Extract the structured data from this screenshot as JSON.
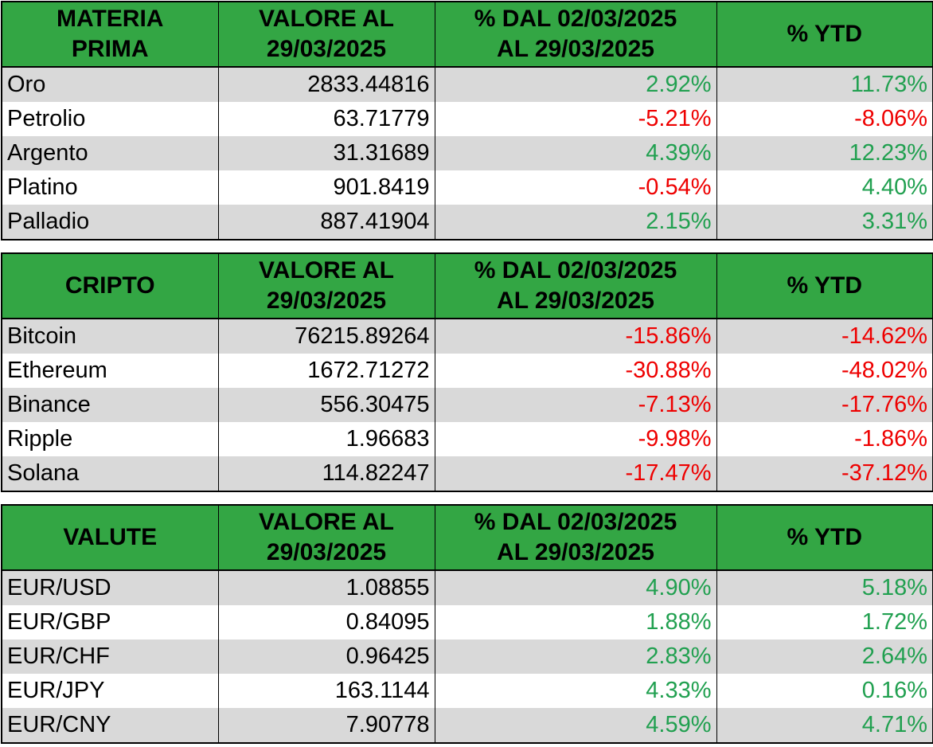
{
  "tables": [
    {
      "headers": [
        "MATERIA PRIMA",
        "VALORE AL 29/03/2025",
        "% DAL 02/03/2025 AL 29/03/2025",
        "% YTD"
      ],
      "header_lines": [
        [
          "MATERIA",
          "PRIMA"
        ],
        [
          "VALORE AL",
          "29/03/2025"
        ],
        [
          "% DAL 02/03/2025",
          "AL 29/03/2025"
        ],
        [
          "% YTD"
        ]
      ],
      "rows": [
        {
          "name": "Oro",
          "value": "2833.44816",
          "change": "2.92%",
          "ytd": "11.73%"
        },
        {
          "name": "Petrolio",
          "value": "63.71779",
          "change": "-5.21%",
          "ytd": "-8.06%"
        },
        {
          "name": "Argento",
          "value": "31.31689",
          "change": "4.39%",
          "ytd": "12.23%"
        },
        {
          "name": "Platino",
          "value": "901.8419",
          "change": "-0.54%",
          "ytd": "4.40%"
        },
        {
          "name": "Palladio",
          "value": "887.41904",
          "change": "2.15%",
          "ytd": "3.31%"
        }
      ]
    },
    {
      "headers": [
        "CRIPTO",
        "VALORE AL 29/03/2025",
        "% DAL 02/03/2025 AL 29/03/2025",
        "% YTD"
      ],
      "header_lines": [
        [
          "CRIPTO"
        ],
        [
          "VALORE AL",
          "29/03/2025"
        ],
        [
          "% DAL 02/03/2025",
          "AL 29/03/2025"
        ],
        [
          "% YTD"
        ]
      ],
      "rows": [
        {
          "name": "Bitcoin",
          "value": "76215.89264",
          "change": "-15.86%",
          "ytd": "-14.62%"
        },
        {
          "name": "Ethereum",
          "value": "1672.71272",
          "change": "-30.88%",
          "ytd": "-48.02%"
        },
        {
          "name": "Binance",
          "value": "556.30475",
          "change": "-7.13%",
          "ytd": "-17.76%"
        },
        {
          "name": "Ripple",
          "value": "1.96683",
          "change": "-9.98%",
          "ytd": "-1.86%"
        },
        {
          "name": "Solana",
          "value": "114.82247",
          "change": "-17.47%",
          "ytd": "-37.12%"
        }
      ]
    },
    {
      "headers": [
        "VALUTE",
        "VALORE AL 29/03/2025",
        "% DAL 02/03/2025 AL 29/03/2025",
        "% YTD"
      ],
      "header_lines": [
        [
          "VALUTE"
        ],
        [
          "VALORE AL",
          "29/03/2025"
        ],
        [
          "% DAL 02/03/2025",
          "AL 29/03/2025"
        ],
        [
          "% YTD"
        ]
      ],
      "rows": [
        {
          "name": "EUR/USD",
          "value": "1.08855",
          "change": "4.90%",
          "ytd": "5.18%"
        },
        {
          "name": "EUR/GBP",
          "value": "0.84095",
          "change": "1.88%",
          "ytd": "1.72%"
        },
        {
          "name": "EUR/CHF",
          "value": "0.96425",
          "change": "2.83%",
          "ytd": "2.64%"
        },
        {
          "name": "EUR/JPY",
          "value": "163.1144",
          "change": "4.33%",
          "ytd": "0.16%"
        },
        {
          "name": "EUR/CNY",
          "value": "7.90778",
          "change": "4.59%",
          "ytd": "4.71%"
        }
      ]
    }
  ],
  "colors": {
    "header_bg": "#33a644",
    "positive": "#21a050",
    "negative": "#ee0000",
    "stripe": "#d9d9d9"
  }
}
